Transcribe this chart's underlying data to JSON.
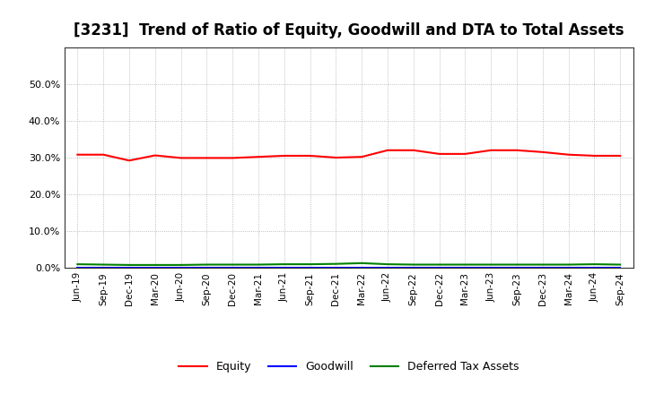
{
  "title": "[3231]  Trend of Ratio of Equity, Goodwill and DTA to Total Assets",
  "x_labels": [
    "Jun-19",
    "Sep-19",
    "Dec-19",
    "Mar-20",
    "Jun-20",
    "Sep-20",
    "Dec-20",
    "Mar-21",
    "Jun-21",
    "Sep-21",
    "Dec-21",
    "Mar-22",
    "Jun-22",
    "Sep-22",
    "Dec-22",
    "Mar-23",
    "Jun-23",
    "Sep-23",
    "Dec-23",
    "Mar-24",
    "Jun-24",
    "Sep-24"
  ],
  "equity": [
    0.308,
    0.308,
    0.292,
    0.306,
    0.299,
    0.299,
    0.299,
    0.302,
    0.305,
    0.305,
    0.3,
    0.302,
    0.32,
    0.32,
    0.31,
    0.31,
    0.32,
    0.32,
    0.315,
    0.308,
    0.305,
    0.305
  ],
  "goodwill": [
    0.001,
    0.001,
    0.001,
    0.001,
    0.001,
    0.001,
    0.001,
    0.001,
    0.001,
    0.001,
    0.001,
    0.001,
    0.001,
    0.001,
    0.001,
    0.001,
    0.001,
    0.001,
    0.001,
    0.001,
    0.001,
    0.001
  ],
  "dta": [
    0.01,
    0.009,
    0.008,
    0.008,
    0.008,
    0.009,
    0.009,
    0.009,
    0.01,
    0.01,
    0.011,
    0.013,
    0.01,
    0.009,
    0.009,
    0.009,
    0.009,
    0.009,
    0.009,
    0.009,
    0.01,
    0.009
  ],
  "equity_color": "#FF0000",
  "goodwill_color": "#0000FF",
  "dta_color": "#008000",
  "ylim": [
    0.0,
    0.6
  ],
  "yticks": [
    0.0,
    0.1,
    0.2,
    0.3,
    0.4,
    0.5
  ],
  "background_color": "#FFFFFF",
  "plot_bg_color": "#FFFFFF",
  "grid_color": "#888888",
  "title_fontsize": 12,
  "legend_labels": [
    "Equity",
    "Goodwill",
    "Deferred Tax Assets"
  ]
}
